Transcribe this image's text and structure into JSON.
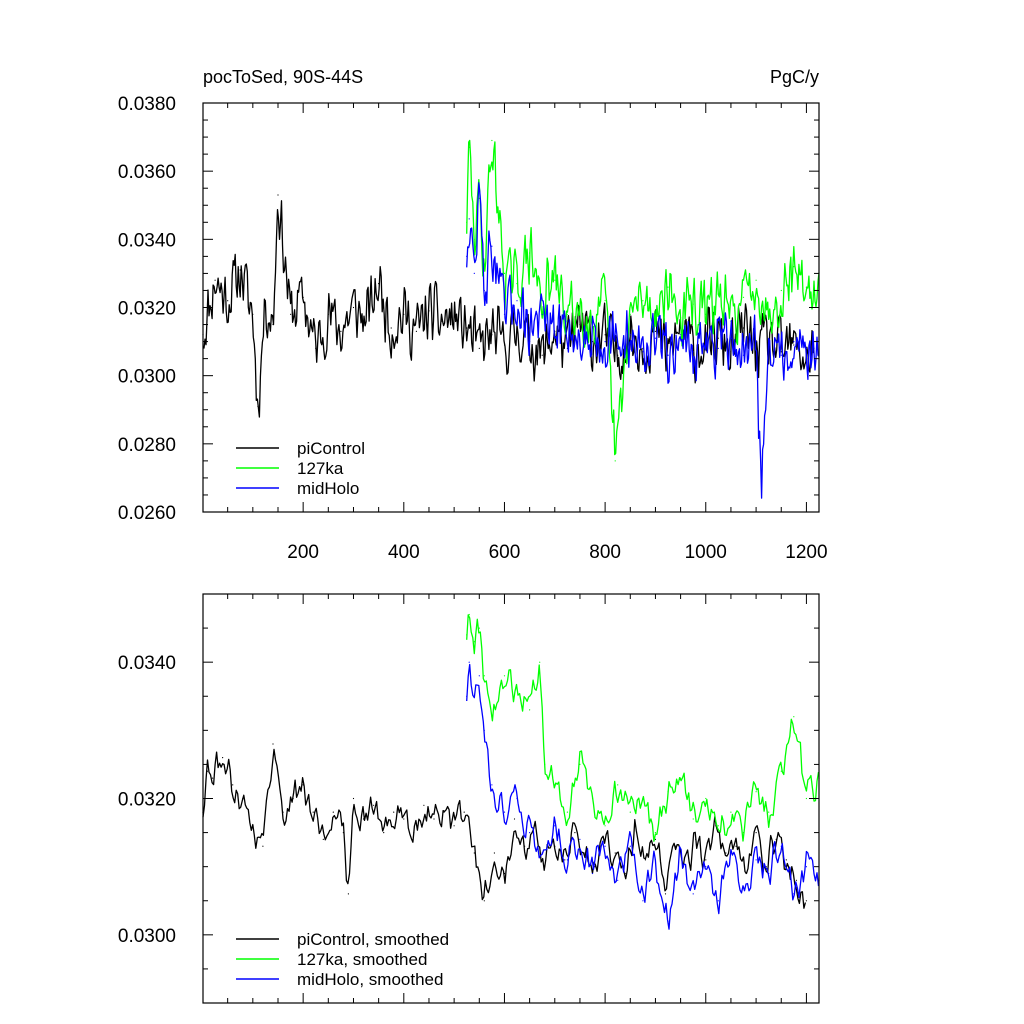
{
  "chart_data": [
    {
      "type": "line",
      "title_left": "pocToSed, 90S-44S",
      "title_right": "PgC/y",
      "xlabel": "",
      "ylabel": "",
      "xlim": [
        1,
        1225
      ],
      "ylim": [
        0.026,
        0.038
      ],
      "xticks": [
        200,
        400,
        600,
        800,
        1000,
        1200
      ],
      "xtick_labels": [
        "200",
        "400",
        "600",
        "800",
        "1000",
        "1200"
      ],
      "yticks": [
        0.026,
        0.028,
        0.03,
        0.032,
        0.034,
        0.036,
        0.038
      ],
      "ytick_labels": [
        "0.0260",
        "0.0280",
        "0.0300",
        "0.0320",
        "0.0340",
        "0.0360",
        "0.0380"
      ],
      "grid": false,
      "legend_position": "bottom-left",
      "series": [
        {
          "name": "piControl",
          "color": "#000000",
          "x": [
            1,
            25,
            50,
            75,
            100,
            110,
            125,
            140,
            150,
            175,
            200,
            225,
            250,
            275,
            300,
            325,
            350,
            375,
            400,
            425,
            450,
            475,
            500,
            525,
            550,
            575,
            600,
            625,
            650,
            675,
            700,
            725,
            750,
            775,
            800,
            825,
            850,
            875,
            900,
            925,
            950,
            975,
            1000,
            1025,
            1050,
            1075,
            1100,
            1125,
            1150,
            1175,
            1200,
            1215
          ],
          "y": [
            0.0312,
            0.0328,
            0.0322,
            0.0331,
            0.0318,
            0.0291,
            0.0322,
            0.0315,
            0.0353,
            0.0318,
            0.0323,
            0.0308,
            0.0318,
            0.0313,
            0.032,
            0.0316,
            0.0327,
            0.0314,
            0.0318,
            0.0313,
            0.0319,
            0.0316,
            0.0317,
            0.0314,
            0.0308,
            0.0312,
            0.0309,
            0.0313,
            0.031,
            0.0306,
            0.0313,
            0.0308,
            0.0315,
            0.031,
            0.0312,
            0.0306,
            0.0312,
            0.0308,
            0.0313,
            0.0306,
            0.0314,
            0.0308,
            0.0309,
            0.0311,
            0.0307,
            0.0314,
            0.0308,
            0.031,
            0.0307,
            0.0309,
            0.0305,
            0.0308
          ]
        },
        {
          "name": "127ka",
          "color": "#00ff00",
          "x": [
            525,
            530,
            540,
            550,
            560,
            575,
            600,
            625,
            650,
            675,
            700,
            725,
            750,
            775,
            800,
            820,
            850,
            875,
            900,
            925,
            950,
            975,
            1000,
            1025,
            1050,
            1075,
            1100,
            1125,
            1150,
            1175,
            1200,
            1225
          ],
          "y": [
            0.0345,
            0.0367,
            0.034,
            0.0352,
            0.0332,
            0.0369,
            0.033,
            0.0327,
            0.0336,
            0.0322,
            0.0328,
            0.0318,
            0.032,
            0.0316,
            0.0322,
            0.0275,
            0.0318,
            0.0322,
            0.0319,
            0.0326,
            0.0317,
            0.0321,
            0.0318,
            0.0324,
            0.0316,
            0.0323,
            0.0328,
            0.0318,
            0.0325,
            0.0332,
            0.0326,
            0.032
          ]
        },
        {
          "name": "midHolo",
          "color": "#0000ff",
          "x": [
            525,
            530,
            540,
            550,
            560,
            575,
            600,
            625,
            650,
            675,
            700,
            725,
            750,
            775,
            800,
            825,
            850,
            875,
            900,
            925,
            950,
            975,
            1000,
            1025,
            1050,
            1075,
            1100,
            1110,
            1125,
            1150,
            1175,
            1200,
            1225
          ],
          "y": [
            0.0335,
            0.0346,
            0.033,
            0.0355,
            0.0325,
            0.0338,
            0.0318,
            0.0322,
            0.0314,
            0.0318,
            0.0311,
            0.0316,
            0.0309,
            0.0314,
            0.031,
            0.0308,
            0.0312,
            0.0307,
            0.0311,
            0.0306,
            0.0312,
            0.0307,
            0.031,
            0.0308,
            0.0311,
            0.0306,
            0.031,
            0.0269,
            0.0309,
            0.0306,
            0.031,
            0.0308,
            0.0305
          ]
        }
      ]
    },
    {
      "type": "line",
      "xlabel": "",
      "ylabel": "",
      "xlim": [
        1,
        1225
      ],
      "ylim": [
        0.029,
        0.035
      ],
      "yticks": [
        0.03,
        0.032,
        0.034
      ],
      "ytick_labels": [
        "0.0300",
        "0.0320",
        "0.0340"
      ],
      "grid": false,
      "legend_position": "bottom-left",
      "series": [
        {
          "name": "piControl, smoothed",
          "color": "#000000",
          "x": [
            1,
            10,
            20,
            40,
            60,
            80,
            100,
            120,
            140,
            160,
            180,
            200,
            220,
            240,
            260,
            280,
            290,
            300,
            320,
            340,
            360,
            380,
            400,
            420,
            440,
            460,
            480,
            500,
            520,
            540,
            560,
            580,
            600,
            620,
            640,
            660,
            680,
            700,
            720,
            740,
            760,
            780,
            800,
            820,
            840,
            860,
            880,
            900,
            920,
            940,
            960,
            980,
            1000,
            1020,
            1040,
            1060,
            1080,
            1100,
            1120,
            1140,
            1160,
            1180,
            1200
          ],
          "y": [
            0.0318,
            0.0324,
            0.0323,
            0.0326,
            0.0322,
            0.032,
            0.0316,
            0.0313,
            0.0328,
            0.0318,
            0.032,
            0.0322,
            0.0318,
            0.0314,
            0.0318,
            0.0315,
            0.0306,
            0.032,
            0.0317,
            0.0319,
            0.0315,
            0.0318,
            0.0317,
            0.0315,
            0.0319,
            0.0317,
            0.0318,
            0.0316,
            0.0318,
            0.0312,
            0.0305,
            0.0312,
            0.0309,
            0.0317,
            0.0313,
            0.0316,
            0.031,
            0.0313,
            0.0311,
            0.0315,
            0.0312,
            0.031,
            0.0314,
            0.0312,
            0.0309,
            0.0316,
            0.0311,
            0.0314,
            0.0306,
            0.0313,
            0.031,
            0.0314,
            0.0311,
            0.0316,
            0.0312,
            0.0313,
            0.0309,
            0.0315,
            0.031,
            0.0314,
            0.0311,
            0.0308,
            0.0305
          ]
        },
        {
          "name": "127ka, smoothed",
          "color": "#00ff00",
          "x": [
            525,
            530,
            540,
            550,
            560,
            575,
            600,
            625,
            650,
            670,
            680,
            700,
            725,
            750,
            775,
            800,
            825,
            850,
            875,
            900,
            925,
            950,
            975,
            1000,
            1025,
            1050,
            1075,
            1100,
            1125,
            1150,
            1175,
            1200,
            1225
          ],
          "y": [
            0.0344,
            0.0347,
            0.0343,
            0.0345,
            0.0338,
            0.0332,
            0.0338,
            0.0336,
            0.0333,
            0.034,
            0.0325,
            0.0322,
            0.0318,
            0.0325,
            0.032,
            0.0316,
            0.0322,
            0.0318,
            0.032,
            0.0315,
            0.0321,
            0.0323,
            0.0317,
            0.032,
            0.0316,
            0.0318,
            0.0315,
            0.0321,
            0.0318,
            0.0324,
            0.0332,
            0.032,
            0.0323
          ]
        },
        {
          "name": "midHolo, smoothed",
          "color": "#0000ff",
          "x": [
            525,
            530,
            540,
            550,
            560,
            575,
            600,
            625,
            650,
            675,
            700,
            725,
            750,
            775,
            800,
            825,
            850,
            875,
            900,
            925,
            950,
            975,
            1000,
            1025,
            1050,
            1075,
            1100,
            1125,
            1150,
            1175,
            1200,
            1225
          ],
          "y": [
            0.0335,
            0.034,
            0.0335,
            0.0338,
            0.033,
            0.0322,
            0.0318,
            0.032,
            0.0315,
            0.0312,
            0.0316,
            0.0311,
            0.0314,
            0.0309,
            0.0313,
            0.0308,
            0.0313,
            0.0305,
            0.0311,
            0.0302,
            0.0312,
            0.0306,
            0.031,
            0.0305,
            0.0312,
            0.0307,
            0.0311,
            0.0309,
            0.0313,
            0.0306,
            0.031,
            0.0308
          ]
        }
      ]
    }
  ]
}
